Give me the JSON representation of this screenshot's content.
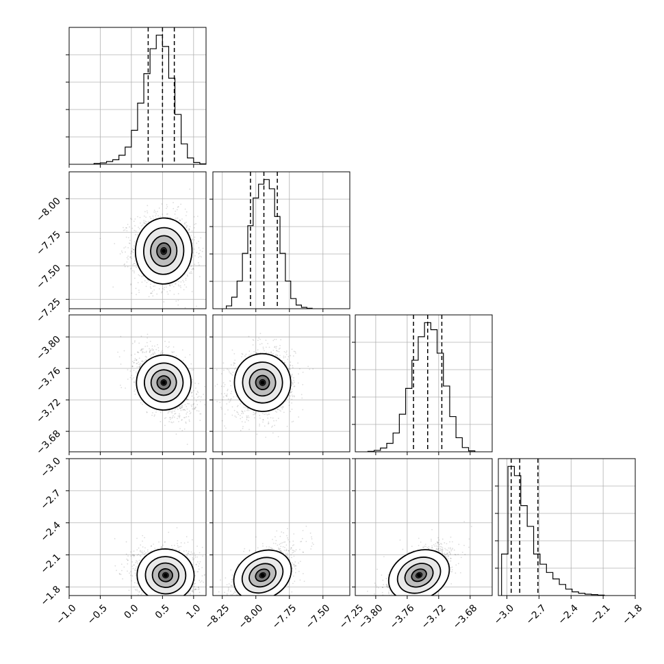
{
  "chart_data": {
    "type": "corner",
    "parameters": 4,
    "tick_labels": {
      "x": [
        [
          "−1.0",
          "−0.5",
          "0.0",
          "0.5",
          "1.0"
        ],
        [
          "−8.25",
          "−8.00",
          "−7.75",
          "−7.50",
          "−7.25"
        ],
        [
          "−3.80",
          "−3.76",
          "−3.72",
          "−3.68"
        ],
        [
          "−3.0",
          "−2.7",
          "−2.4",
          "−2.1",
          "−1.8"
        ]
      ],
      "y": [
        [],
        [
          "−7.25",
          "−7.50",
          "−7.75",
          "−8.00",
          "−8.25"
        ],
        [
          "−3.68",
          "−3.72",
          "−3.76",
          "−3.80"
        ],
        [
          "−1.8",
          "−2.1",
          "−2.4",
          "−2.7",
          "−3.0"
        ]
      ]
    },
    "axes": [
      {
        "ticks": [
          -1.0,
          -0.5,
          0.0,
          0.5,
          1.0
        ],
        "range": [
          -1.0,
          1.2
        ]
      },
      {
        "ticks": [
          -8.25,
          -8.0,
          -7.75,
          -7.5,
          -7.25
        ],
        "range": [
          -8.32,
          -7.3
        ]
      },
      {
        "ticks": [
          -3.8,
          -3.76,
          -3.72,
          -3.68
        ],
        "range": [
          -3.826,
          -3.652
        ]
      },
      {
        "ticks": [
          -3.0,
          -2.7,
          -2.4,
          -2.1,
          -1.8
        ],
        "range": [
          -3.08,
          -1.8
        ]
      }
    ],
    "marginals": [
      {
        "parameter": 0,
        "quantiles": [
          0.27,
          0.5,
          0.69
        ],
        "bins": [
          -0.55,
          -0.45,
          -0.35,
          -0.25,
          -0.15,
          -0.05,
          0.05,
          0.15,
          0.25,
          0.35,
          0.45,
          0.55,
          0.65,
          0.75,
          0.85,
          0.95,
          1.05,
          1.15
        ],
        "counts": [
          2,
          3,
          6,
          10,
          20,
          38,
          75,
          135,
          200,
          255,
          285,
          260,
          190,
          110,
          45,
          14,
          4,
          1
        ]
      },
      {
        "parameter": 1,
        "quantiles": [
          -8.04,
          -7.94,
          -7.84
        ],
        "bins": [
          -8.2,
          -8.16,
          -8.12,
          -8.08,
          -8.04,
          -8.0,
          -7.96,
          -7.92,
          -7.88,
          -7.84,
          -7.8,
          -7.76,
          -7.72,
          -7.68,
          -7.64,
          -7.6
        ],
        "counts": [
          6,
          25,
          60,
          120,
          180,
          240,
          270,
          280,
          260,
          200,
          120,
          60,
          22,
          8,
          3,
          1
        ]
      },
      {
        "parameter": 2,
        "quantiles": [
          -3.752,
          -3.734,
          -3.716
        ],
        "bins": [
          -3.806,
          -3.798,
          -3.79,
          -3.782,
          -3.774,
          -3.766,
          -3.758,
          -3.75,
          -3.742,
          -3.734,
          -3.726,
          -3.718,
          -3.71,
          -3.702,
          -3.694,
          -3.686,
          -3.678
        ],
        "counts": [
          1,
          3,
          8,
          18,
          40,
          80,
          135,
          195,
          245,
          275,
          260,
          210,
          140,
          75,
          30,
          9,
          2
        ]
      },
      {
        "parameter": 3,
        "quantiles": [
          -2.96,
          -2.88,
          -2.71
        ],
        "bins": [
          -3.02,
          -2.96,
          -2.9,
          -2.84,
          -2.78,
          -2.72,
          -2.66,
          -2.6,
          -2.54,
          -2.48,
          -2.42,
          -2.36,
          -2.3,
          -2.24,
          -2.18,
          -2.12
        ],
        "counts": [
          90,
          280,
          260,
          195,
          150,
          90,
          68,
          50,
          36,
          24,
          14,
          8,
          5,
          3,
          2,
          1
        ]
      }
    ],
    "joint": [
      {
        "x": 0,
        "y": 1,
        "mean": [
          0.52,
          -7.89
        ],
        "sd": [
          0.22,
          0.12
        ],
        "rho": -0.05
      },
      {
        "x": 0,
        "y": 2,
        "mean": [
          0.52,
          -3.738
        ],
        "sd": [
          0.2,
          0.018
        ],
        "rho": -0.45
      },
      {
        "x": 1,
        "y": 2,
        "mean": [
          -7.95,
          -3.738
        ],
        "sd": [
          0.1,
          0.018
        ],
        "rho": 0.15
      },
      {
        "x": 0,
        "y": 3,
        "mean": [
          0.55,
          -2.89
        ],
        "sd": [
          0.22,
          0.12
        ],
        "rho": -0.1
      },
      {
        "x": 1,
        "y": 3,
        "mean": [
          -7.95,
          -2.89
        ],
        "sd": [
          0.1,
          0.12
        ],
        "rho": 0.65
      },
      {
        "x": 2,
        "y": 3,
        "mean": [
          -3.745,
          -2.89
        ],
        "sd": [
          0.018,
          0.12
        ],
        "rho": 0.6
      }
    ],
    "grid": true,
    "colors": {
      "line": "#000000",
      "grid": "#b0b0b0",
      "points": "#000000"
    }
  }
}
